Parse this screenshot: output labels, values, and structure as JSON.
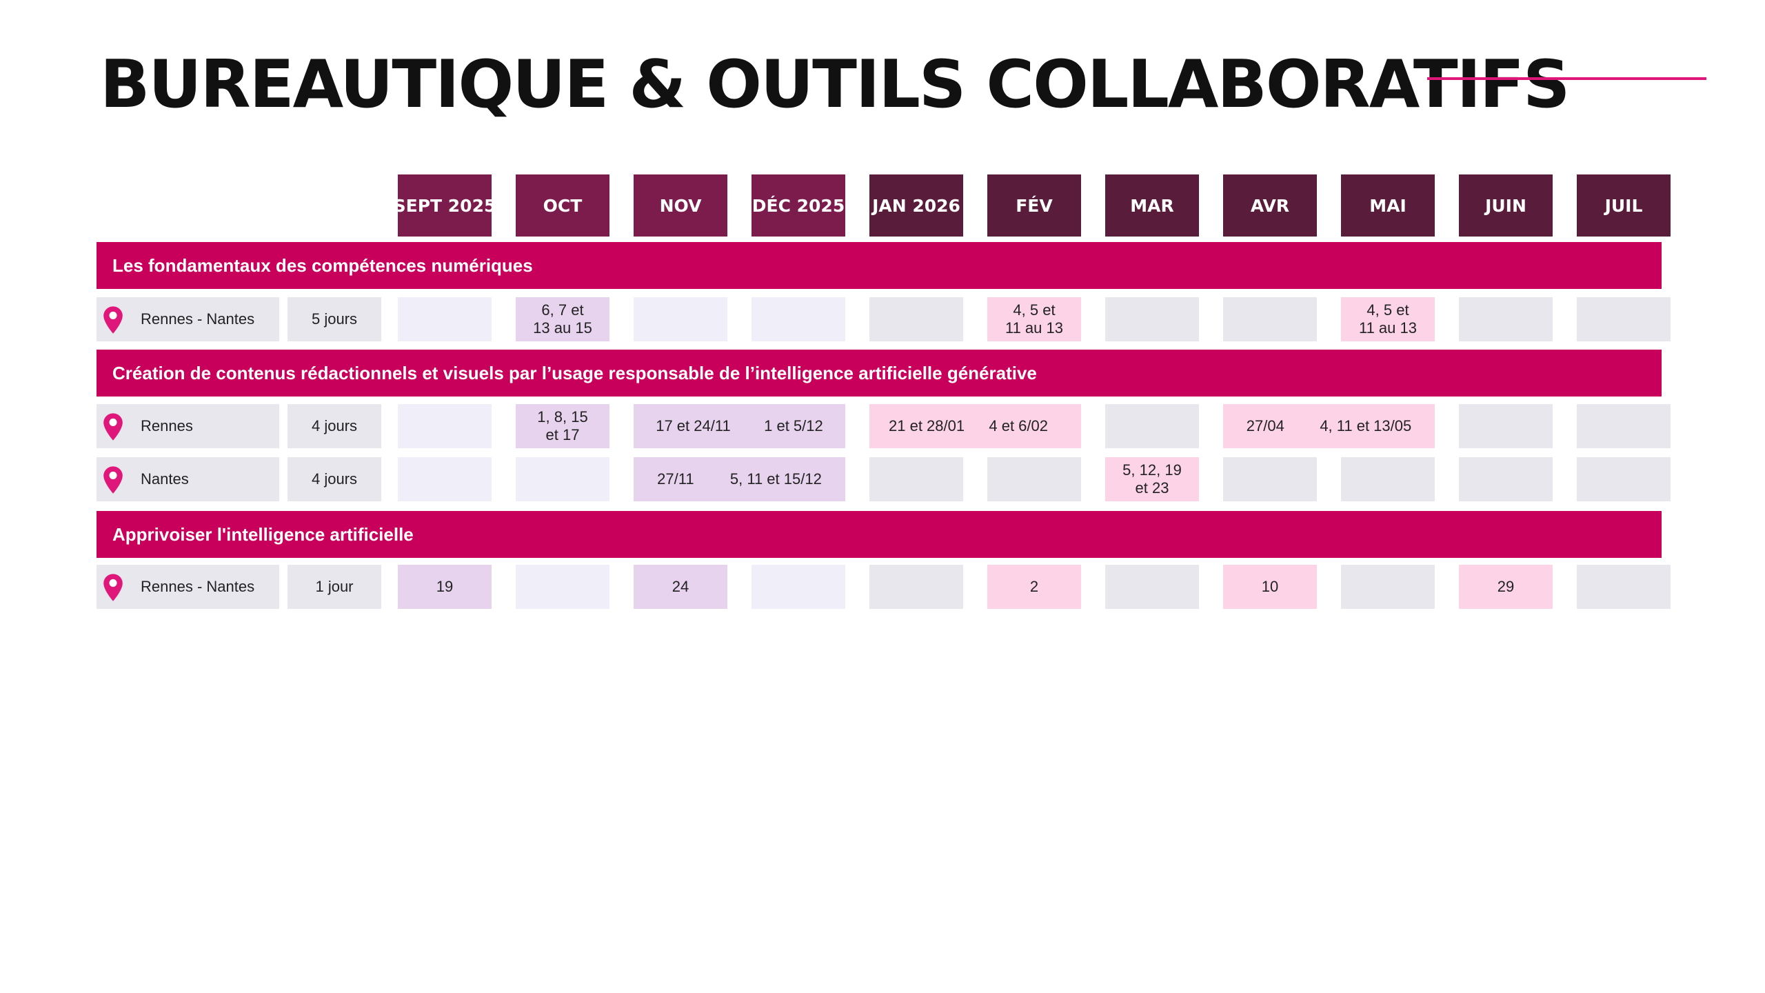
{
  "title": "BUREAUTIQUE & OUTILS COLLABORATIFS",
  "months": [
    "SEPT 2025",
    "OCT",
    "NOV",
    "DÉC 2025",
    "JAN 2026",
    "FÉV",
    "MAR",
    "AVR",
    "MAI",
    "JUIN",
    "JUIL"
  ],
  "sections": [
    {
      "title": "Les fondamentaux des compétences numériques",
      "rows": [
        {
          "location": "Rennes - Nantes",
          "duration": "5 jours",
          "dates": {
            "oct": "6, 7 et\n13 au 15",
            "fev": "4, 5 et\n11 au 13",
            "mai": "4, 5 et\n11 au 13"
          }
        }
      ]
    },
    {
      "title": "Création de contenus rédactionnels et visuels par l’usage responsable de l’intelligence artificielle générative",
      "rows": [
        {
          "location": "Rennes",
          "duration": "4 jours",
          "dates": {
            "oct": "1, 8, 15\net 17",
            "nov_dec_1": "17 et 24/11",
            "nov_dec_2": "1 et 5/12",
            "jan_fev_1": "21 et 28/01",
            "jan_fev_2": "4 et 6/02",
            "avr_mai_1": "27/04",
            "avr_mai_2": "4, 11 et 13/05"
          }
        },
        {
          "location": "Nantes",
          "duration": "4 jours",
          "dates": {
            "nov_dec_1": "27/11",
            "nov_dec_2": "5, 11 et 15/12",
            "mar": "5, 12, 19\net 23"
          }
        }
      ]
    },
    {
      "title": "Apprivoiser l'intelligence artificielle",
      "rows": [
        {
          "location": "Rennes - Nantes",
          "duration": "1 jour",
          "dates": {
            "sept": "19",
            "nov": "24",
            "fev": "2",
            "avr": "10",
            "juin": "29"
          }
        }
      ]
    }
  ],
  "colors": {
    "accent": "#C8005C",
    "pin": "#E0177A",
    "month_header_light": "#7B1C4D",
    "month_header_dark": "#5A1C3B",
    "cell_purple": "#E7D3EE",
    "cell_pink": "#FDD3E8",
    "cell_empty_light": "#F0EEF8",
    "cell_empty_grey": "#E8E7EE"
  },
  "icons": {
    "location": "map-pin-icon"
  }
}
